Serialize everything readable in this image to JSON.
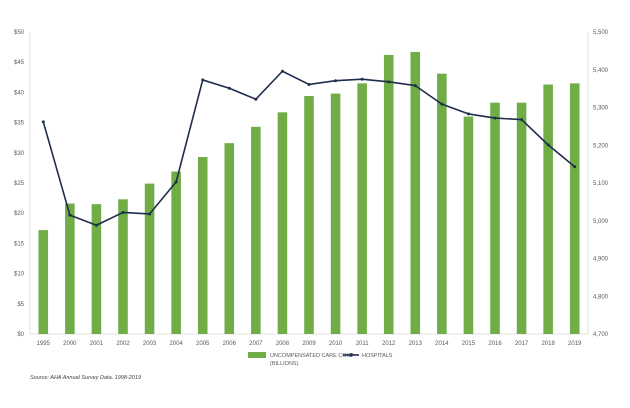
{
  "chart_data": {
    "type": "bar+line",
    "title": "",
    "categories": [
      "1995",
      "2000",
      "2001",
      "2002",
      "2003",
      "2004",
      "2005",
      "2006",
      "2007",
      "2008",
      "2009",
      "2010",
      "2011",
      "2012",
      "2013",
      "2014",
      "2015",
      "2016",
      "2017",
      "2018",
      "2019"
    ],
    "series": [
      {
        "name": "UNCOMPENSATED CARE COST (BILLIONS)",
        "type": "bar",
        "axis": "left",
        "color": "#70ad47",
        "values": [
          17.2,
          21.6,
          21.5,
          22.3,
          24.9,
          26.9,
          29.3,
          31.6,
          34.3,
          36.7,
          39.4,
          39.8,
          41.5,
          46.2,
          46.7,
          43.1,
          36.0,
          38.3,
          38.3,
          41.3,
          41.5
        ]
      },
      {
        "name": "HOSPITALS",
        "type": "line",
        "axis": "right",
        "color": "#1f2d4d",
        "values": [
          5262,
          5015,
          4988,
          5022,
          5018,
          5103,
          5373,
          5351,
          5322,
          5396,
          5361,
          5371,
          5375,
          5368,
          5358,
          5309,
          5283,
          5272,
          5268,
          5201,
          5143
        ]
      }
    ],
    "y_left": {
      "min": 0,
      "max": 50,
      "step": 5,
      "format_prefix": "$"
    },
    "y_right": {
      "min": 4700,
      "max": 5500,
      "step": 100
    },
    "grid": false,
    "legend": {
      "position": "bottom",
      "line1": "UNCOMPENSATED CARE COST",
      "line2": "(BILLIONS)",
      "line_label": "HOSPITALS"
    }
  },
  "source": "Source: AHA Annual Survey Data, 1998-2019"
}
